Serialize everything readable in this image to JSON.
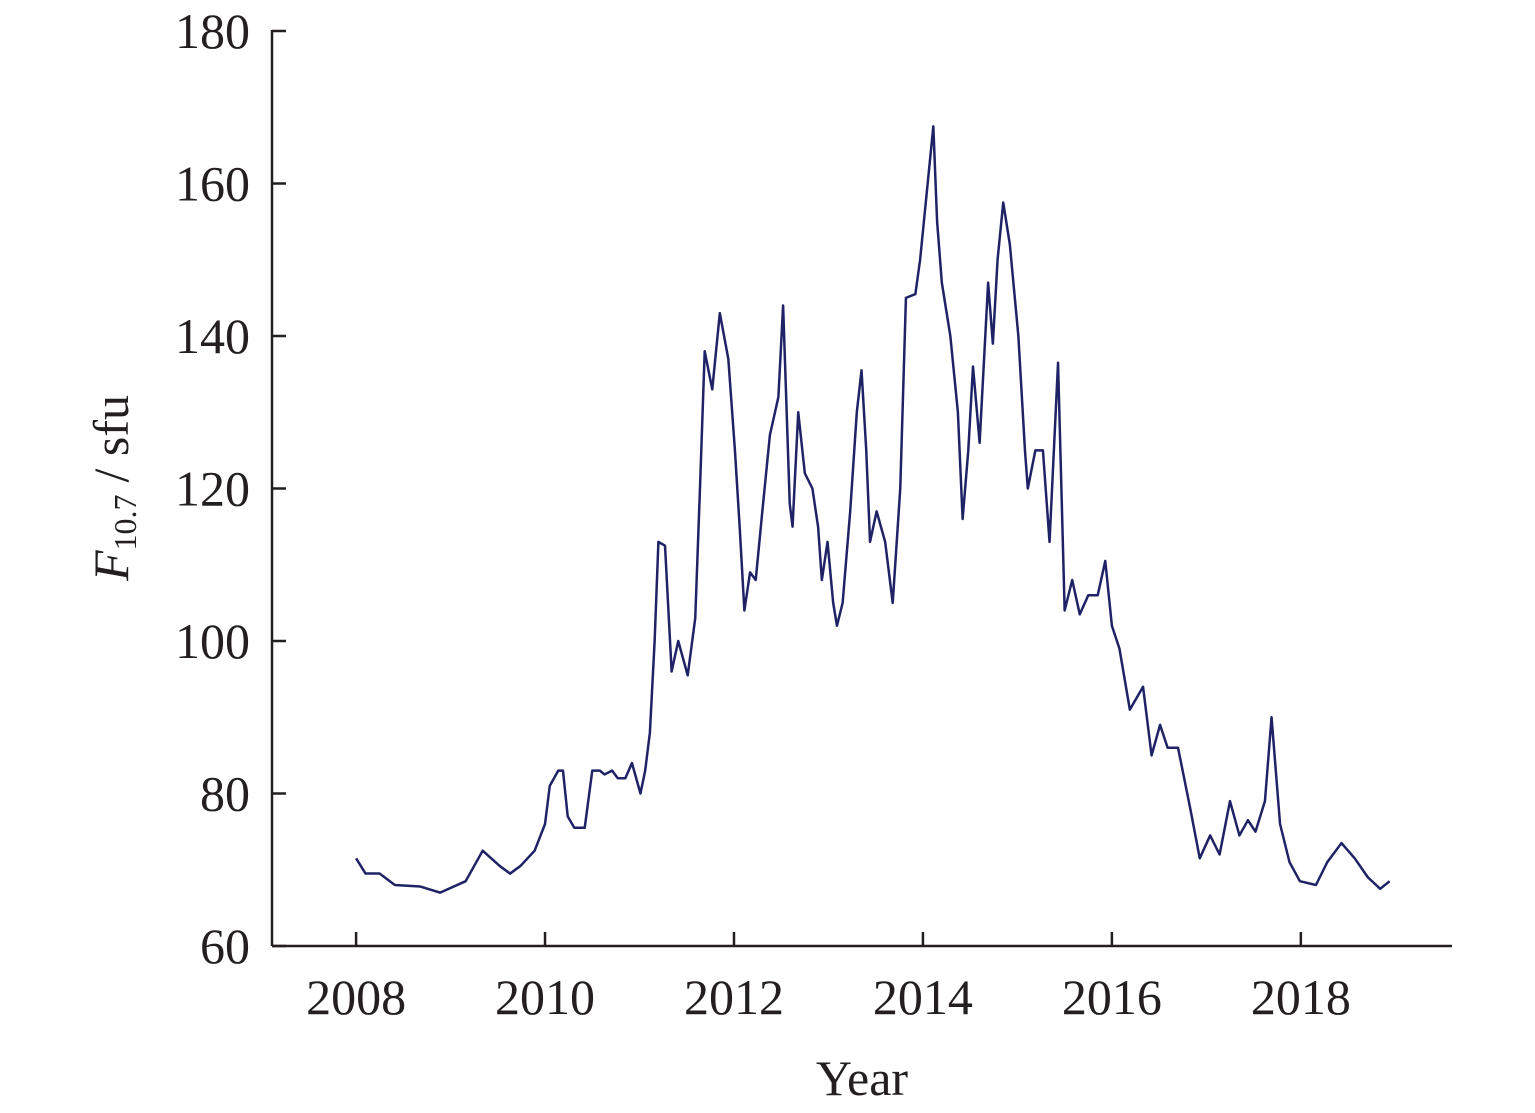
{
  "chart_data": {
    "type": "line",
    "xlabel": "Year",
    "ylabel_symbol": "F",
    "ylabel_subscript": "10.7",
    "ylabel_unit": "/ sfu",
    "xlim": [
      2007.11,
      2019.6
    ],
    "ylim": [
      60,
      180
    ],
    "xticks": [
      2008,
      2010,
      2012,
      2014,
      2016,
      2018
    ],
    "yticks": [
      60,
      80,
      100,
      120,
      140,
      160,
      180
    ],
    "grid": false,
    "series": [
      {
        "color": "#1f2366",
        "x": [
          2008.0,
          2008.1,
          2008.25,
          2008.41,
          2008.68,
          2008.89,
          2009.16,
          2009.34,
          2009.52,
          2009.63,
          2009.74,
          2009.89,
          2010.0,
          2010.05,
          2010.14,
          2010.19,
          2010.24,
          2010.31,
          2010.42,
          2010.5,
          2010.58,
          2010.63,
          2010.71,
          2010.77,
          2010.85,
          2010.92,
          2011.01,
          2011.06,
          2011.11,
          2011.16,
          2011.2,
          2011.27,
          2011.34,
          2011.41,
          2011.51,
          2011.59,
          2011.64,
          2011.69,
          2011.77,
          2011.85,
          2011.94,
          2012.01,
          2012.06,
          2012.11,
          2012.17,
          2012.23,
          2012.3,
          2012.38,
          2012.47,
          2012.52,
          2012.59,
          2012.62,
          2012.68,
          2012.75,
          2012.83,
          2012.89,
          2012.93,
          2012.99,
          2013.05,
          2013.09,
          2013.15,
          2013.23,
          2013.3,
          2013.35,
          2013.4,
          2013.44,
          2013.51,
          2013.6,
          2013.68,
          2013.76,
          2013.82,
          2013.92,
          2013.97,
          2014.05,
          2014.11,
          2014.15,
          2014.2,
          2014.29,
          2014.37,
          2014.42,
          2014.48,
          2014.53,
          2014.6,
          2014.69,
          2014.74,
          2014.79,
          2014.85,
          2014.92,
          2015.01,
          2015.08,
          2015.11,
          2015.19,
          2015.27,
          2015.34,
          2015.43,
          2015.5,
          2015.58,
          2015.66,
          2015.75,
          2015.85,
          2015.93,
          2016.0,
          2016.08,
          2016.19,
          2016.33,
          2016.42,
          2016.51,
          2016.59,
          2016.7,
          2016.83,
          2016.93,
          2017.04,
          2017.14,
          2017.25,
          2017.35,
          2017.44,
          2017.52,
          2017.62,
          2017.69,
          2017.78,
          2017.88,
          2017.99,
          2018.16,
          2018.28,
          2018.43,
          2018.57,
          2018.71,
          2018.84,
          2018.94
        ],
        "values": [
          71.5,
          69.5,
          69.5,
          68,
          67.8,
          67,
          68.5,
          72.5,
          70.5,
          69.5,
          70.5,
          72.5,
          76,
          81,
          83,
          83,
          77,
          75.5,
          75.5,
          83,
          83,
          82.5,
          83,
          82,
          82,
          84,
          80,
          83,
          88,
          100,
          113,
          112.5,
          96,
          100,
          95.5,
          103,
          120,
          138,
          133,
          143,
          137,
          125,
          115,
          104,
          109,
          108,
          117,
          127,
          132,
          144,
          118,
          115,
          130,
          122,
          120,
          115,
          108,
          113,
          105,
          102,
          105,
          117,
          130,
          135.5,
          125,
          113,
          117,
          113,
          105,
          120,
          145,
          145.5,
          150,
          160,
          167.5,
          155,
          147,
          140,
          130,
          116,
          125,
          136,
          126,
          147,
          139,
          150,
          157.5,
          152,
          140,
          125,
          120,
          125,
          125,
          113,
          136.5,
          104,
          108,
          103.5,
          106,
          106,
          110.5,
          102,
          99,
          91,
          94,
          85,
          89,
          86,
          86,
          78,
          71.5,
          74.5,
          72,
          79,
          74.5,
          76.5,
          75,
          79,
          90,
          76,
          71,
          68.5,
          68,
          71,
          73.5,
          71.5,
          69,
          67.5,
          68.5
        ]
      }
    ]
  }
}
